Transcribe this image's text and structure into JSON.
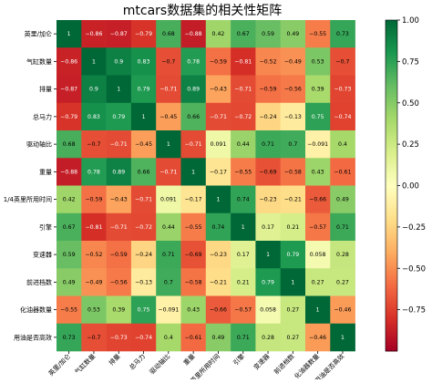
{
  "chart_data": {
    "type": "heatmap",
    "title": "mtcars数据集的相关性矩阵",
    "labels": [
      "英里/加仑",
      "气缸数量",
      "排量",
      "总马力",
      "驱动轴比",
      "重量",
      "1/4英里所用时间",
      "引擎",
      "变速器",
      "前进档数",
      "化油器数量",
      "用油是否高效"
    ],
    "values": [
      [
        1,
        -0.86,
        -0.87,
        -0.79,
        0.68,
        -0.88,
        0.42,
        0.67,
        0.59,
        0.49,
        -0.55,
        0.73
      ],
      [
        -0.86,
        1,
        0.9,
        0.83,
        -0.7,
        0.78,
        -0.59,
        -0.81,
        -0.52,
        -0.49,
        0.53,
        -0.7
      ],
      [
        -0.87,
        0.9,
        1,
        0.79,
        -0.71,
        0.89,
        -0.43,
        -0.71,
        -0.59,
        -0.56,
        0.39,
        -0.73
      ],
      [
        -0.79,
        0.83,
        0.79,
        1,
        -0.45,
        0.66,
        -0.71,
        -0.72,
        -0.24,
        -0.13,
        0.75,
        -0.74
      ],
      [
        0.68,
        -0.7,
        -0.71,
        -0.45,
        1,
        -0.71,
        0.091,
        0.44,
        0.71,
        0.7,
        -0.091,
        0.4
      ],
      [
        -0.88,
        0.78,
        0.89,
        0.66,
        -0.71,
        1,
        -0.17,
        -0.55,
        -0.69,
        -0.58,
        0.43,
        -0.61
      ],
      [
        0.42,
        -0.59,
        -0.43,
        -0.71,
        0.091,
        -0.17,
        1,
        0.74,
        -0.23,
        -0.21,
        -0.66,
        0.49
      ],
      [
        0.67,
        -0.81,
        -0.71,
        -0.72,
        0.44,
        -0.55,
        0.74,
        1,
        0.17,
        0.21,
        -0.57,
        0.71
      ],
      [
        0.59,
        -0.52,
        -0.59,
        -0.24,
        0.71,
        -0.69,
        -0.23,
        0.17,
        1,
        0.79,
        0.058,
        0.28
      ],
      [
        0.49,
        -0.49,
        -0.56,
        -0.13,
        0.7,
        -0.58,
        -0.21,
        0.21,
        0.79,
        1,
        0.27,
        0.27
      ],
      [
        -0.55,
        0.53,
        0.39,
        0.75,
        -0.091,
        0.43,
        -0.66,
        -0.57,
        0.058,
        0.27,
        1,
        -0.46
      ],
      [
        0.73,
        -0.7,
        -0.73,
        -0.74,
        0.4,
        -0.61,
        0.49,
        0.71,
        0.28,
        0.27,
        -0.46,
        1
      ]
    ],
    "colorbar": {
      "colormap": "RdYlGn",
      "range": [
        -1,
        1
      ],
      "ticks": [
        "−0.75",
        "−0.50",
        "−0.25",
        "0.00",
        "0.25",
        "0.50",
        "0.75",
        "1.00"
      ],
      "tick_values": [
        -0.75,
        -0.5,
        -0.25,
        0,
        0.25,
        0.5,
        0.75,
        1.0
      ]
    }
  }
}
